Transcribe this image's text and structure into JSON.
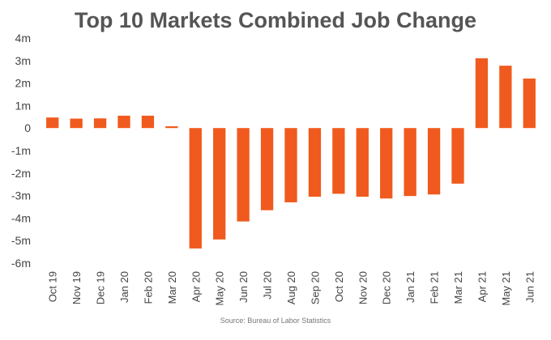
{
  "chart_data": {
    "type": "bar",
    "title": "Top 10 Markets Combined Job Change",
    "source": "Source: Bureau of Labor Statistics",
    "xlabel": "",
    "ylabel": "",
    "ylim": [
      -6,
      4
    ],
    "yticks": [
      {
        "value": 4,
        "label": "4m"
      },
      {
        "value": 3,
        "label": "3m"
      },
      {
        "value": 2,
        "label": "2m"
      },
      {
        "value": 1,
        "label": "1m"
      },
      {
        "value": 0,
        "label": "0"
      },
      {
        "value": -1,
        "label": "-1m"
      },
      {
        "value": -2,
        "label": "-2m"
      },
      {
        "value": -3,
        "label": "-3m"
      },
      {
        "value": -4,
        "label": "-4m"
      },
      {
        "value": -5,
        "label": "-5m"
      },
      {
        "value": -6,
        "label": "-6m"
      }
    ],
    "grid": false,
    "bar_color": "#f05a1e",
    "categories": [
      "Oct 19",
      "Nov 19",
      "Dec 19",
      "Jan 20",
      "Feb 20",
      "Mar 20",
      "Apr 20",
      "May 20",
      "Jun 20",
      "Jul 20",
      "Aug 20",
      "Sep 20",
      "Oct 20",
      "Nov 20",
      "Dec 20",
      "Jan 21",
      "Feb 21",
      "Mar 21",
      "Apr 21",
      "May 21",
      "Jun 21"
    ],
    "series": [
      {
        "values": [
          0.47,
          0.42,
          0.43,
          0.55,
          0.55,
          0.08,
          -5.35,
          -4.95,
          -4.15,
          -3.65,
          -3.3,
          -3.05,
          -2.92,
          -3.05,
          -3.13,
          -3.02,
          -2.95,
          -2.47,
          3.1,
          2.77,
          2.2
        ]
      }
    ]
  }
}
